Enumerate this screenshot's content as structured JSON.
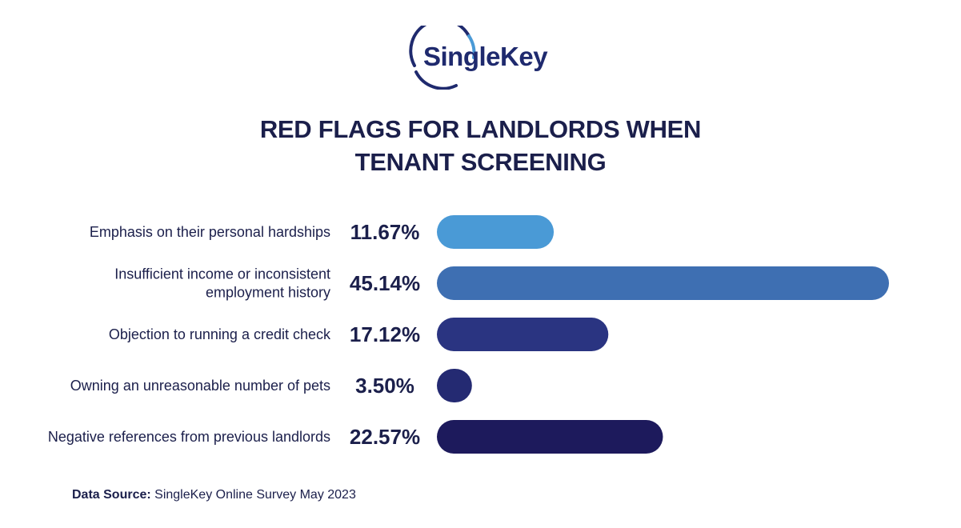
{
  "brand": {
    "name": "SingleKey",
    "colors": {
      "ring": "#4a9ad6",
      "text": "#1f2a6e"
    }
  },
  "title_lines": [
    "RED FLAGS FOR LANDLORDS WHEN",
    "TENANT SCREENING"
  ],
  "source": {
    "label": "Data Source:",
    "text": "SingleKey Online Survey May 2023"
  },
  "chart_data": {
    "type": "bar",
    "orientation": "horizontal",
    "categories": [
      [
        "Emphasis on their personal hardships"
      ],
      [
        "Insufficient income or inconsistent",
        "employment history"
      ],
      [
        "Objection to running a credit check"
      ],
      [
        "Owning an unreasonable number of pets"
      ],
      [
        "Negative references from previous landlords"
      ]
    ],
    "values": [
      11.67,
      45.14,
      17.12,
      3.5,
      22.57
    ],
    "value_labels": [
      "11.67%",
      "45.14%",
      "17.12%",
      "3.50%",
      "22.57%"
    ],
    "colors": [
      "#4a9ad6",
      "#3e6fb2",
      "#2a3481",
      "#242a72",
      "#1d1a5c"
    ],
    "title": "",
    "xlabel": "",
    "ylabel": "",
    "xlim": [
      0,
      45.14
    ],
    "grid": false,
    "legend": "none"
  }
}
